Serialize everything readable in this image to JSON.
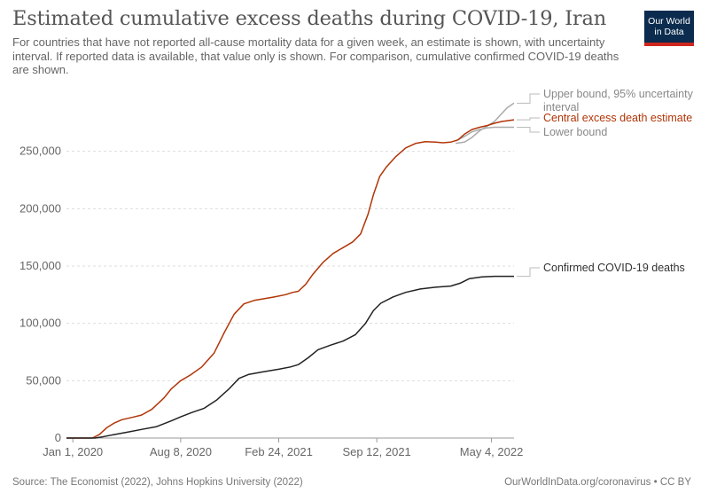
{
  "header": {
    "title": "Estimated cumulative excess deaths during COVID-19, Iran",
    "subtitle": "For countries that have not reported all-cause mortality data for a given week, an estimate is shown, with uncertainty interval. If reported data is available, that value only is shown. For comparison, cumulative confirmed COVID-19 deaths are shown.",
    "logo_line1": "Our World",
    "logo_line2": "in Data"
  },
  "footer": {
    "source": "Source: The Economist (2022), Johns Hopkins University (2022)",
    "credit": "OurWorldInData.org/coronavirus • CC BY"
  },
  "colors": {
    "central": "#b13507",
    "bounds": "#aaaaaa",
    "confirmed": "#222222",
    "grid": "#dddddd",
    "logo_bg": "#0b2c4e",
    "logo_accent": "#ce261e"
  },
  "chart_data": {
    "type": "line",
    "x_type": "date",
    "x_domain": [
      "2019-12-19",
      "2022-06-19"
    ],
    "ylim": [
      0,
      300000
    ],
    "y_ticks": [
      0,
      50000,
      100000,
      150000,
      200000,
      250000
    ],
    "y_tick_labels": [
      "0",
      "50,000",
      "100,000",
      "150,000",
      "200,000",
      "250,000"
    ],
    "x_ticks": [
      "2020-01-01",
      "2020-08-08",
      "2021-02-24",
      "2021-09-12",
      "2022-05-04"
    ],
    "x_tick_labels": [
      "Jan 1, 2020",
      "Aug 8, 2020",
      "Feb 24, 2021",
      "Sep 12, 2021",
      "May 4, 2022"
    ],
    "grid": "horizontal dashed",
    "legend": "right-side line labels",
    "series": [
      {
        "name": "Upper bound, 95% uncertainty interval",
        "key": "upper",
        "points": [
          [
            "2022-02-20",
            257000
          ],
          [
            "2022-03-10",
            258000
          ],
          [
            "2022-03-25",
            262000
          ],
          [
            "2022-04-10",
            268000
          ],
          [
            "2022-04-25",
            272000
          ],
          [
            "2022-05-10",
            276000
          ],
          [
            "2022-05-25",
            283000
          ],
          [
            "2022-06-05",
            288000
          ],
          [
            "2022-06-19",
            292000
          ]
        ]
      },
      {
        "name": "Central excess death estimate",
        "key": "central",
        "points": [
          [
            "2019-12-19",
            0
          ],
          [
            "2020-01-01",
            0
          ],
          [
            "2020-02-10",
            0
          ],
          [
            "2020-02-24",
            3000
          ],
          [
            "2020-03-10",
            9000
          ],
          [
            "2020-03-25",
            13000
          ],
          [
            "2020-04-10",
            16000
          ],
          [
            "2020-05-01",
            18000
          ],
          [
            "2020-05-20",
            20000
          ],
          [
            "2020-06-10",
            25000
          ],
          [
            "2020-07-05",
            35000
          ],
          [
            "2020-07-20",
            43000
          ],
          [
            "2020-08-08",
            50000
          ],
          [
            "2020-08-28",
            55000
          ],
          [
            "2020-09-20",
            62000
          ],
          [
            "2020-10-15",
            74000
          ],
          [
            "2020-11-05",
            92000
          ],
          [
            "2020-11-25",
            108000
          ],
          [
            "2020-12-15",
            117000
          ],
          [
            "2021-01-05",
            120000
          ],
          [
            "2021-01-25",
            121500
          ],
          [
            "2021-02-15",
            123000
          ],
          [
            "2021-03-10",
            125000
          ],
          [
            "2021-03-25",
            127000
          ],
          [
            "2021-04-05",
            128000
          ],
          [
            "2021-04-20",
            134000
          ],
          [
            "2021-05-05",
            143000
          ],
          [
            "2021-05-25",
            153000
          ],
          [
            "2021-06-15",
            161000
          ],
          [
            "2021-07-05",
            166000
          ],
          [
            "2021-07-25",
            171000
          ],
          [
            "2021-08-10",
            178000
          ],
          [
            "2021-08-25",
            195000
          ],
          [
            "2021-09-05",
            212000
          ],
          [
            "2021-09-18",
            228000
          ],
          [
            "2021-10-01",
            236000
          ],
          [
            "2021-10-20",
            245000
          ],
          [
            "2021-11-10",
            253000
          ],
          [
            "2021-12-01",
            257000
          ],
          [
            "2021-12-20",
            258500
          ],
          [
            "2022-01-10",
            258000
          ],
          [
            "2022-01-25",
            257500
          ],
          [
            "2022-02-10",
            258000
          ],
          [
            "2022-02-25",
            260000
          ],
          [
            "2022-03-10",
            265000
          ],
          [
            "2022-03-25",
            269000
          ],
          [
            "2022-04-10",
            271000
          ],
          [
            "2022-04-25",
            272500
          ],
          [
            "2022-05-10",
            274500
          ],
          [
            "2022-05-25",
            276000
          ],
          [
            "2022-06-19",
            277500
          ]
        ]
      },
      {
        "name": "Lower bound",
        "key": "lower",
        "points": [
          [
            "2022-02-20",
            259000
          ],
          [
            "2022-03-10",
            263000
          ],
          [
            "2022-03-25",
            267000
          ],
          [
            "2022-04-10",
            269000
          ],
          [
            "2022-04-25",
            270500
          ],
          [
            "2022-05-10",
            271000
          ],
          [
            "2022-05-25",
            271000
          ],
          [
            "2022-06-19",
            271000
          ]
        ]
      },
      {
        "name": "Confirmed COVID-19 deaths",
        "key": "confirmed",
        "points": [
          [
            "2019-12-19",
            0
          ],
          [
            "2020-02-15",
            0
          ],
          [
            "2020-03-01",
            1000
          ],
          [
            "2020-03-25",
            3000
          ],
          [
            "2020-04-20",
            5000
          ],
          [
            "2020-05-20",
            7500
          ],
          [
            "2020-06-20",
            10000
          ],
          [
            "2020-07-20",
            15000
          ],
          [
            "2020-08-08",
            18500
          ],
          [
            "2020-09-01",
            22500
          ],
          [
            "2020-09-25",
            26000
          ],
          [
            "2020-10-20",
            33000
          ],
          [
            "2020-11-15",
            43000
          ],
          [
            "2020-12-05",
            52000
          ],
          [
            "2020-12-25",
            55500
          ],
          [
            "2021-01-20",
            57500
          ],
          [
            "2021-02-24",
            60000
          ],
          [
            "2021-03-20",
            62000
          ],
          [
            "2021-04-05",
            64000
          ],
          [
            "2021-04-25",
            70000
          ],
          [
            "2021-05-15",
            77000
          ],
          [
            "2021-06-10",
            81000
          ],
          [
            "2021-07-05",
            84500
          ],
          [
            "2021-07-30",
            90000
          ],
          [
            "2021-08-20",
            100000
          ],
          [
            "2021-09-05",
            111000
          ],
          [
            "2021-09-20",
            117500
          ],
          [
            "2021-10-15",
            123000
          ],
          [
            "2021-11-10",
            127000
          ],
          [
            "2021-12-10",
            130000
          ],
          [
            "2022-01-10",
            131500
          ],
          [
            "2022-02-10",
            132500
          ],
          [
            "2022-03-01",
            135000
          ],
          [
            "2022-03-20",
            139000
          ],
          [
            "2022-04-15",
            140500
          ],
          [
            "2022-05-10",
            141000
          ],
          [
            "2022-06-19",
            141000
          ]
        ]
      }
    ]
  }
}
